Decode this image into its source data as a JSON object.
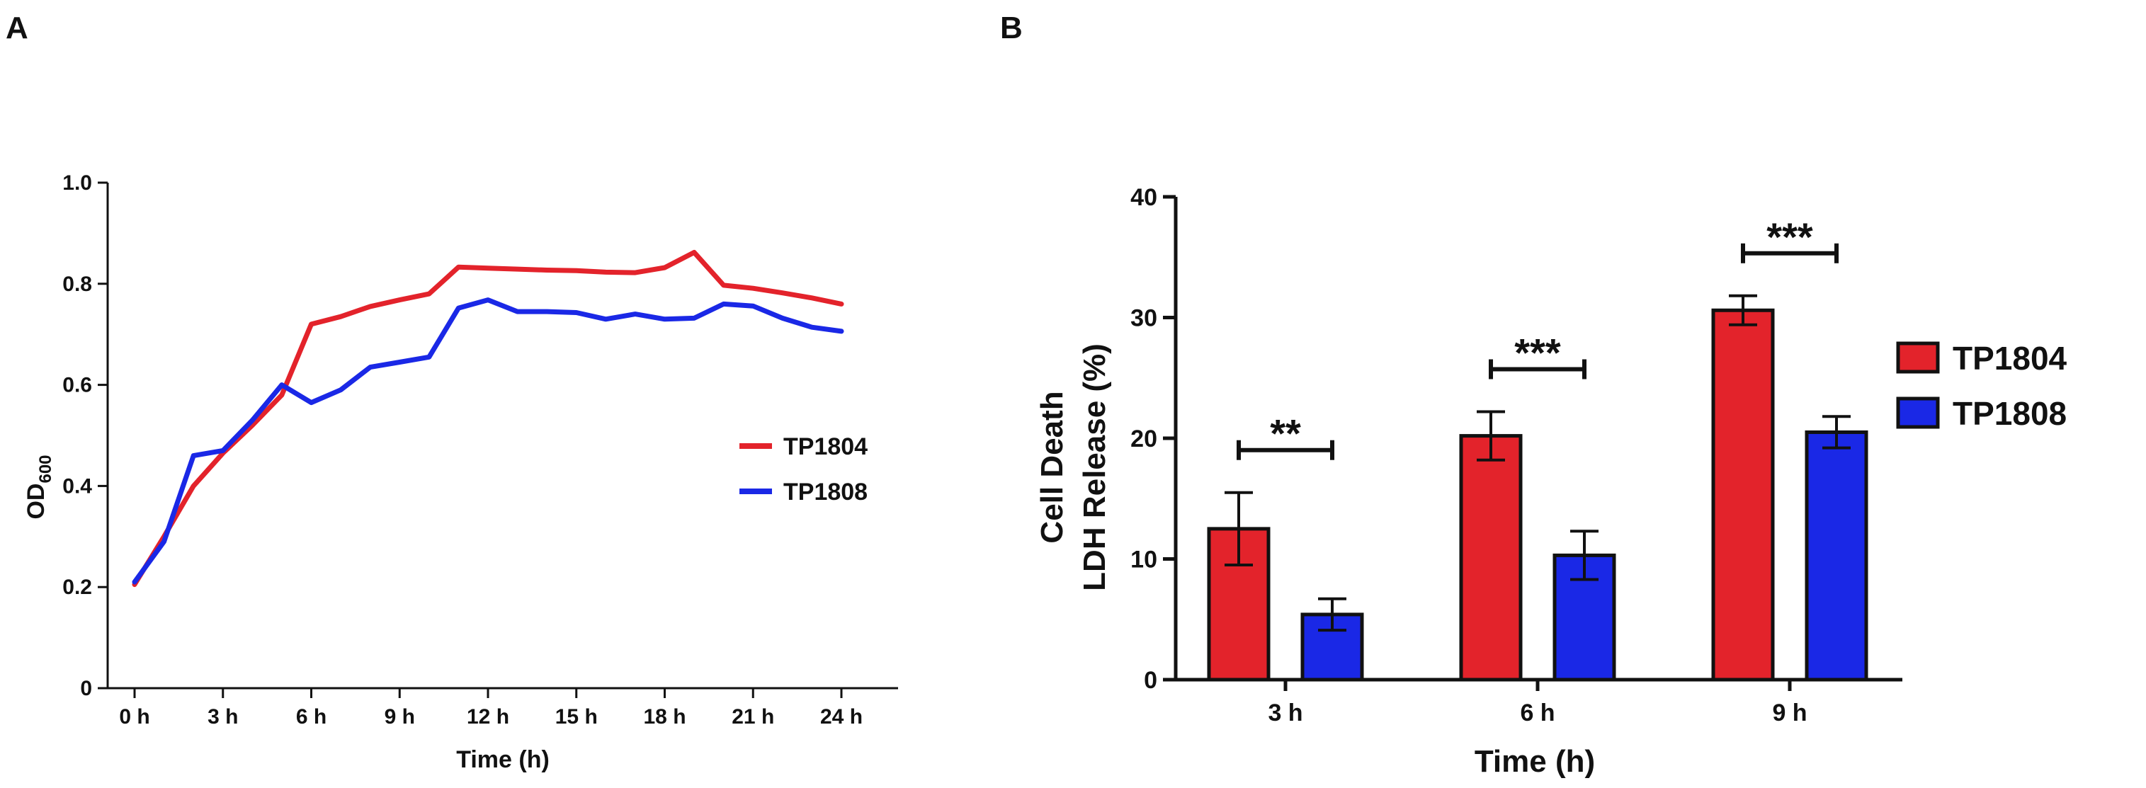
{
  "colors": {
    "red": "#e3232b",
    "blue": "#1a28e6",
    "axis": "#111111"
  },
  "chart_data": [
    {
      "panel": "A",
      "type": "line",
      "title": "",
      "xlabel": "Time  (h)",
      "ylabel_main": "OD",
      "ylabel_sub": "600",
      "xlim": [
        0,
        24
      ],
      "ylim": [
        0,
        1.0
      ],
      "x_ticks": [
        0,
        3,
        6,
        9,
        12,
        15,
        18,
        21,
        24
      ],
      "x_tick_labels": [
        "0 h",
        "3 h",
        "6 h",
        "9 h",
        "12 h",
        "15 h",
        "18 h",
        "21 h",
        "24 h"
      ],
      "y_ticks": [
        0,
        0.2,
        0.4,
        0.6,
        0.8,
        1.0
      ],
      "y_tick_labels": [
        "0",
        "0.2",
        "0.4",
        "0.6",
        "0.8",
        "1.0"
      ],
      "legend_position": "right",
      "series": [
        {
          "name": "TP1804",
          "color": "#e3232b",
          "x": [
            0,
            1,
            2,
            3,
            4,
            5,
            6,
            7,
            8,
            9,
            10,
            11,
            12,
            13,
            14,
            15,
            16,
            17,
            18,
            19,
            20,
            21,
            22,
            23,
            24
          ],
          "y": [
            0.205,
            0.3,
            0.4,
            0.465,
            0.52,
            0.58,
            0.72,
            0.735,
            0.755,
            0.768,
            0.78,
            0.833,
            0.831,
            0.829,
            0.827,
            0.826,
            0.823,
            0.822,
            0.832,
            0.862,
            0.797,
            0.791,
            0.782,
            0.772,
            0.76
          ]
        },
        {
          "name": "TP1808",
          "color": "#1a28e6",
          "x": [
            0,
            1,
            2,
            3,
            4,
            5,
            6,
            7,
            8,
            9,
            10,
            11,
            12,
            13,
            14,
            15,
            16,
            17,
            18,
            19,
            20,
            21,
            22,
            23,
            24
          ],
          "y": [
            0.21,
            0.29,
            0.46,
            0.47,
            0.53,
            0.6,
            0.565,
            0.59,
            0.635,
            0.645,
            0.655,
            0.752,
            0.768,
            0.745,
            0.745,
            0.743,
            0.73,
            0.74,
            0.73,
            0.732,
            0.76,
            0.756,
            0.732,
            0.714,
            0.706
          ]
        }
      ]
    },
    {
      "panel": "B",
      "type": "bar",
      "title": "",
      "xlabel": "Time  (h)",
      "ylabel_lines": [
        "Cell Death",
        "LDH Release (%)"
      ],
      "ylim": [
        0,
        40
      ],
      "y_ticks": [
        0,
        10,
        20,
        30,
        40
      ],
      "y_tick_labels": [
        "0",
        "10",
        "20",
        "30",
        "40"
      ],
      "categories": [
        "3 h",
        "6 h",
        "9 h"
      ],
      "legend_position": "right",
      "series": [
        {
          "name": "TP1804",
          "color": "#e3232b",
          "values": [
            12.5,
            20.2,
            30.6
          ],
          "errors": [
            3.0,
            2.0,
            1.2
          ]
        },
        {
          "name": "TP1808",
          "color": "#1a28e6",
          "values": [
            5.4,
            10.3,
            20.5
          ],
          "errors": [
            1.3,
            2.0,
            1.3
          ]
        }
      ],
      "significance": [
        "**",
        "***",
        "***"
      ]
    }
  ]
}
